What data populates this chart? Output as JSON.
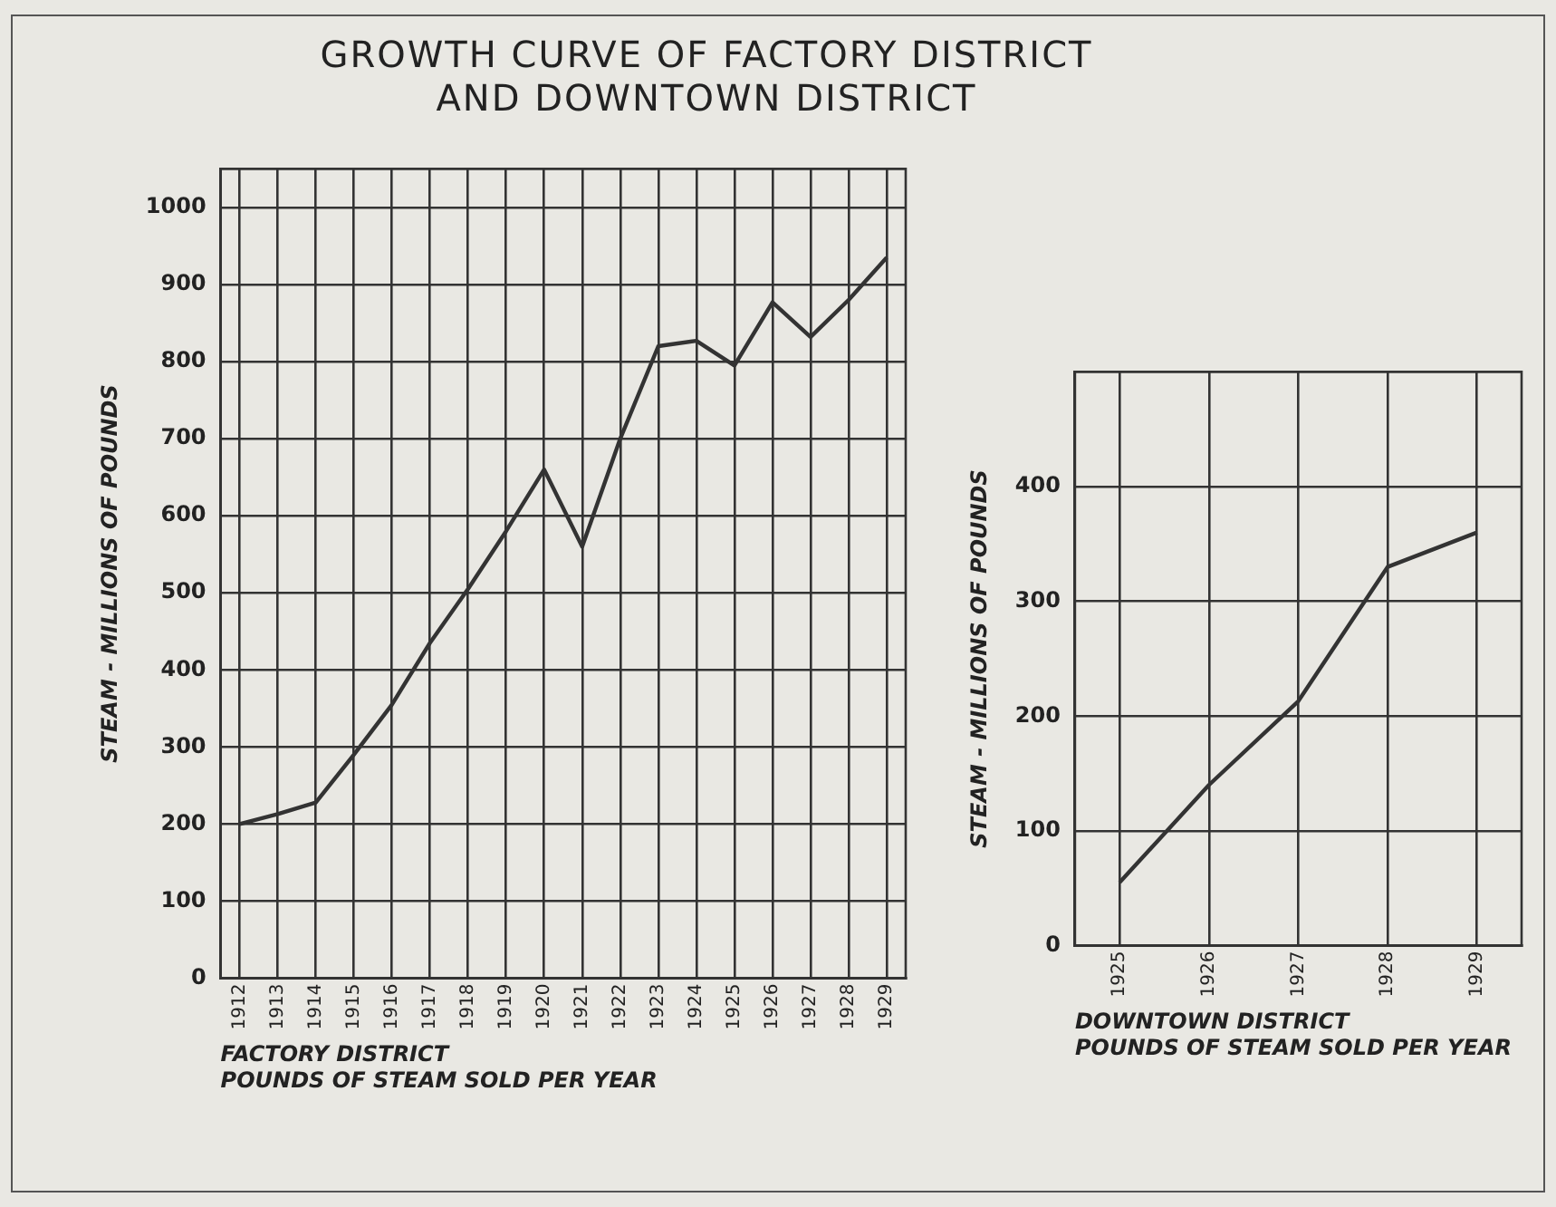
{
  "chart_data": [
    {
      "type": "line",
      "title": "GROWTH CURVE OF FACTORY DISTRICT AND DOWNTOWN DISTRICT",
      "subtitle": "FACTORY DISTRICT",
      "xlabel": "POUNDS OF STEAM SOLD PER YEAR",
      "ylabel": "STEAM - MILLIONS OF POUNDS",
      "categories": [
        "1912",
        "1913",
        "1914",
        "1915",
        "1916",
        "1917",
        "1918",
        "1919",
        "1920",
        "1921",
        "1922",
        "1923",
        "1924",
        "1925",
        "1926",
        "1927",
        "1928",
        "1929"
      ],
      "series": [
        {
          "color": "#333333",
          "values": [
            200,
            213,
            228,
            290,
            355,
            435,
            505,
            580,
            660,
            560,
            700,
            820,
            827,
            795,
            877,
            832,
            880,
            935
          ]
        }
      ],
      "ylim": [
        0,
        1050
      ],
      "yticks": [
        0,
        100,
        200,
        300,
        400,
        500,
        600,
        700,
        800,
        900,
        1000
      ],
      "grid": true,
      "marker": "none",
      "line_style": "solid"
    },
    {
      "type": "line",
      "subtitle": "DOWNTOWN DISTRICT",
      "xlabel": "POUNDS OF STEAM SOLD PER YEAR",
      "ylabel": "STEAM - MILLIONS OF POUNDS",
      "categories": [
        "1925",
        "1926",
        "1927",
        "1928",
        "1929"
      ],
      "series": [
        {
          "color": "#333333",
          "values": [
            55,
            140,
            213,
            330,
            360
          ]
        }
      ],
      "ylim": [
        0,
        500
      ],
      "yticks": [
        0,
        100,
        200,
        300,
        400
      ],
      "grid": true,
      "marker": "none",
      "line_style": "solid"
    }
  ]
}
